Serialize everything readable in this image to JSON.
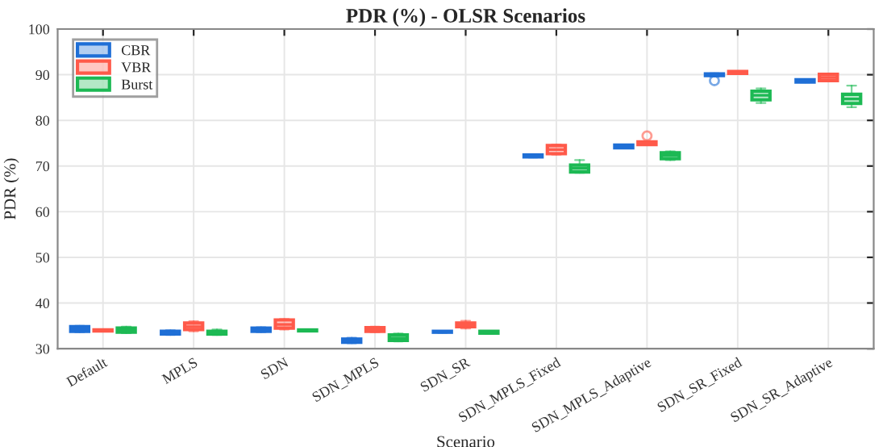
{
  "chart_data": {
    "type": "box",
    "title": "PDR (%) - OLSR Scenarios",
    "xlabel": "Scenario",
    "ylabel": "PDR (%)",
    "categories": [
      "Default",
      "MPLS",
      "SDN",
      "SDN_MPLS",
      "SDN_SR",
      "SDN_MPLS_Fixed",
      "SDN_MPLS_Adaptive",
      "SDN_SR_Fixed",
      "SDN_SR_Adaptive"
    ],
    "ylim": [
      30,
      100
    ],
    "yticks": [
      30,
      40,
      50,
      60,
      70,
      80,
      90,
      100
    ],
    "grid": true,
    "legend": "top left",
    "series": [
      {
        "name": "CBR",
        "color": "#1f6fd6",
        "boxes": [
          {
            "low": 33.6,
            "q1": 33.8,
            "median": 34.3,
            "q3": 34.8,
            "high": 35.0
          },
          {
            "low": 33.0,
            "q1": 33.2,
            "median": 33.5,
            "q3": 33.8,
            "high": 34.0
          },
          {
            "low": 33.6,
            "q1": 33.8,
            "median": 34.1,
            "q3": 34.5,
            "high": 34.7
          },
          {
            "low": 31.2,
            "q1": 31.4,
            "median": 31.7,
            "q3": 32.1,
            "high": 32.4
          },
          {
            "low": 33.5,
            "q1": 33.6,
            "median": 33.7,
            "q3": 33.8,
            "high": 33.9
          },
          {
            "low": 71.9,
            "q1": 72.0,
            "median": 72.2,
            "q3": 72.4,
            "high": 72.5
          },
          {
            "low": 73.9,
            "q1": 74.0,
            "median": 74.3,
            "q3": 74.6,
            "high": 74.7
          },
          {
            "low": 89.6,
            "q1": 89.8,
            "median": 90.0,
            "q3": 90.2,
            "high": 90.3,
            "outliers": [
              88.7
            ]
          },
          {
            "low": 88.3,
            "q1": 88.4,
            "median": 88.6,
            "q3": 88.9,
            "high": 89.0
          }
        ]
      },
      {
        "name": "VBR",
        "color": "#ff5a4a",
        "boxes": [
          {
            "low": 33.8,
            "q1": 33.9,
            "median": 34.0,
            "q3": 34.1,
            "high": 34.2
          },
          {
            "low": 33.8,
            "q1": 34.2,
            "median": 34.8,
            "q3": 35.6,
            "high": 36.0
          },
          {
            "low": 34.2,
            "q1": 34.5,
            "median": 35.3,
            "q3": 36.3,
            "high": 36.5
          },
          {
            "low": 33.6,
            "q1": 33.8,
            "median": 34.2,
            "q3": 34.6,
            "high": 34.8
          },
          {
            "low": 34.4,
            "q1": 34.8,
            "median": 35.2,
            "q3": 35.6,
            "high": 36.1
          },
          {
            "low": 72.5,
            "q1": 72.7,
            "median": 73.6,
            "q3": 74.5,
            "high": 74.7
          },
          {
            "low": 74.6,
            "q1": 74.7,
            "median": 75.0,
            "q3": 75.3,
            "high": 75.4,
            "outliers": [
              76.6
            ]
          },
          {
            "low": 90.2,
            "q1": 90.3,
            "median": 90.5,
            "q3": 90.7,
            "high": 90.8
          },
          {
            "low": 88.6,
            "q1": 88.7,
            "median": 89.4,
            "q3": 90.1,
            "high": 90.2
          }
        ]
      },
      {
        "name": "Burst",
        "color": "#1db954",
        "boxes": [
          {
            "low": 33.4,
            "q1": 33.6,
            "median": 34.0,
            "q3": 34.5,
            "high": 34.8
          },
          {
            "low": 33.0,
            "q1": 33.2,
            "median": 33.4,
            "q3": 33.8,
            "high": 34.2
          },
          {
            "low": 33.8,
            "q1": 33.9,
            "median": 34.0,
            "q3": 34.1,
            "high": 34.2
          },
          {
            "low": 31.6,
            "q1": 31.8,
            "median": 32.3,
            "q3": 33.0,
            "high": 33.3
          },
          {
            "low": 33.3,
            "q1": 33.4,
            "median": 33.6,
            "q3": 33.8,
            "high": 33.9
          },
          {
            "low": 68.5,
            "q1": 68.7,
            "median": 69.5,
            "q3": 70.2,
            "high": 71.3
          },
          {
            "low": 71.3,
            "q1": 71.6,
            "median": 72.3,
            "q3": 72.9,
            "high": 73.2
          },
          {
            "low": 83.8,
            "q1": 84.5,
            "median": 85.5,
            "q3": 86.4,
            "high": 87.0
          },
          {
            "low": 82.9,
            "q1": 83.7,
            "median": 84.7,
            "q3": 85.7,
            "high": 87.6
          }
        ]
      }
    ]
  }
}
